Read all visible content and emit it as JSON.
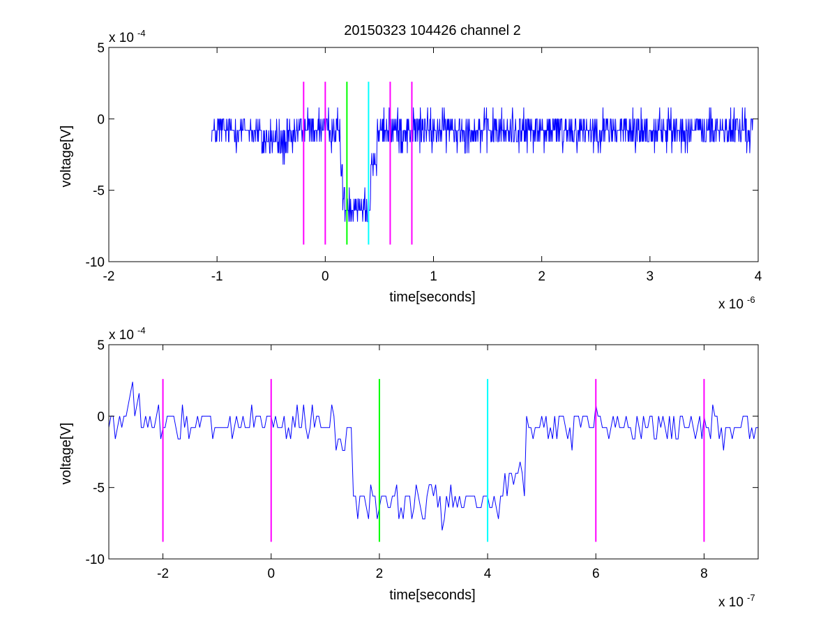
{
  "figure_title": "20150323 104426 channel 2",
  "colors": {
    "signal": "#0000ff",
    "marker_magenta": "#ff00ff",
    "marker_green": "#00ff00",
    "marker_cyan": "#00ffff",
    "axes": "#000000",
    "background": "#ffffff"
  },
  "chart_data": [
    {
      "type": "line",
      "title": "20150323 104426 channel 2",
      "xlabel": "time[seconds]",
      "ylabel": "voltage[V]",
      "x_multiplier": "x 10",
      "x_exponent": "-6",
      "y_multiplier": "x 10",
      "y_exponent": "-4",
      "xlim": [
        -2,
        4
      ],
      "ylim": [
        -10,
        5
      ],
      "xticks": [
        -2,
        -1,
        0,
        1,
        2,
        3,
        4
      ],
      "yticks": [
        -10,
        -5,
        0,
        5
      ],
      "grid": false,
      "markers": [
        {
          "x": -0.2,
          "color": "magenta",
          "y_range": [
            -8.8,
            2.6
          ]
        },
        {
          "x": 0.0,
          "color": "magenta",
          "y_range": [
            -8.8,
            2.6
          ]
        },
        {
          "x": 0.2,
          "color": "green",
          "y_range": [
            -8.8,
            2.6
          ]
        },
        {
          "x": 0.4,
          "color": "cyan",
          "y_range": [
            -8.8,
            2.6
          ]
        },
        {
          "x": 0.6,
          "color": "magenta",
          "y_range": [
            -8.8,
            2.6
          ]
        },
        {
          "x": 0.8,
          "color": "magenta",
          "y_range": [
            -8.8,
            2.6
          ]
        }
      ],
      "series": [
        {
          "x_start": -1.05,
          "x_end": 3.95,
          "segments": [
            {
              "x": [
                -1.05,
                -0.6
              ],
              "mean": -0.8,
              "noise": 0.75
            },
            {
              "x": [
                -0.6,
                -0.28
              ],
              "mean": -1.5,
              "noise": 0.9
            },
            {
              "x": [
                -0.28,
                0.14
              ],
              "mean": -0.7,
              "noise": 0.8
            },
            {
              "x": [
                0.14,
                0.16
              ],
              "mean": -3.5,
              "noise": 0.5
            },
            {
              "x": [
                0.16,
                0.42
              ],
              "mean": -6.0,
              "noise": 0.9
            },
            {
              "x": [
                0.42,
                0.48
              ],
              "mean": -3.0,
              "noise": 0.8
            },
            {
              "x": [
                0.48,
                3.95
              ],
              "mean": -0.8,
              "noise": 0.85
            }
          ],
          "sample_step": 0.004
        }
      ]
    },
    {
      "type": "line",
      "title": "",
      "xlabel": "time[seconds]",
      "ylabel": "voltage[V]",
      "x_multiplier": "x 10",
      "x_exponent": "-7",
      "y_multiplier": "x 10",
      "y_exponent": "-4",
      "xlim": [
        -3,
        9
      ],
      "ylim": [
        -10,
        5
      ],
      "xticks": [
        -2,
        0,
        2,
        4,
        6,
        8
      ],
      "yticks": [
        -10,
        -5,
        0,
        5
      ],
      "grid": false,
      "markers": [
        {
          "x": -2,
          "color": "magenta",
          "y_range": [
            -8.8,
            2.6
          ]
        },
        {
          "x": 0,
          "color": "magenta",
          "y_range": [
            -8.8,
            2.6
          ]
        },
        {
          "x": 2,
          "color": "green",
          "y_range": [
            -8.8,
            2.6
          ]
        },
        {
          "x": 4,
          "color": "cyan",
          "y_range": [
            -8.8,
            2.6
          ]
        },
        {
          "x": 6,
          "color": "magenta",
          "y_range": [
            -8.8,
            2.6
          ]
        },
        {
          "x": 8,
          "color": "magenta",
          "y_range": [
            -8.8,
            2.6
          ]
        }
      ],
      "series": [
        {
          "x_start": -3,
          "x_end": 9,
          "segments": [
            {
              "x": [
                -3.0,
                -2.6
              ],
              "mean": -0.6,
              "noise": 0.9
            },
            {
              "x": [
                -2.6,
                -2.4
              ],
              "mean": 1.3,
              "noise": 0.7
            },
            {
              "x": [
                -2.4,
                1.2
              ],
              "mean": -0.7,
              "noise": 0.8
            },
            {
              "x": [
                1.2,
                1.5
              ],
              "mean": -1.8,
              "noise": 0.6
            },
            {
              "x": [
                1.5,
                4.3
              ],
              "mean": -6.0,
              "noise": 0.9
            },
            {
              "x": [
                4.3,
                4.7
              ],
              "mean": -4.5,
              "noise": 0.8
            },
            {
              "x": [
                4.7,
                5.0
              ],
              "mean": -1.2,
              "noise": 0.9
            },
            {
              "x": [
                5.0,
                9.0
              ],
              "mean": -0.7,
              "noise": 0.8
            }
          ],
          "sample_step": 0.04
        }
      ]
    }
  ]
}
